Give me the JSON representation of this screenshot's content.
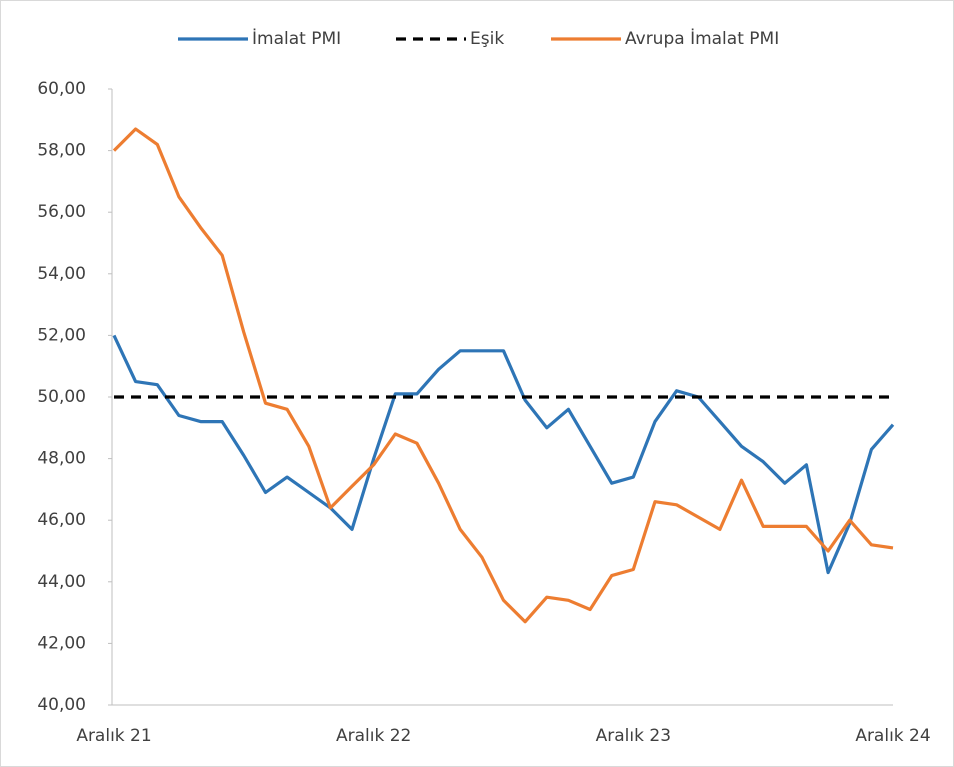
{
  "chart_data": {
    "type": "line",
    "categories": [
      "Aralık 21",
      null,
      null,
      null,
      null,
      null,
      null,
      null,
      null,
      null,
      null,
      null,
      "Aralık 22",
      null,
      null,
      null,
      null,
      null,
      null,
      null,
      null,
      null,
      null,
      null,
      "Aralık 23",
      null,
      null,
      null,
      null,
      null,
      null,
      null,
      null,
      null,
      null,
      null,
      "Aralık 24"
    ],
    "series": [
      {
        "name": "İmalat PMI",
        "color": "#2e75b6",
        "dash": false,
        "values": [
          52.0,
          50.5,
          50.4,
          49.4,
          49.2,
          49.2,
          48.1,
          46.9,
          47.4,
          46.9,
          46.4,
          45.7,
          48.0,
          50.1,
          50.1,
          50.9,
          51.5,
          51.5,
          51.5,
          49.9,
          49.0,
          49.6,
          48.4,
          47.2,
          47.4,
          49.2,
          50.2,
          50.0,
          49.2,
          48.4,
          47.9,
          47.2,
          47.8,
          44.3,
          45.9,
          48.3,
          49.1
        ]
      },
      {
        "name": "Eşik",
        "color": "#000000",
        "dash": true,
        "values": [
          50,
          50,
          50,
          50,
          50,
          50,
          50,
          50,
          50,
          50,
          50,
          50,
          50,
          50,
          50,
          50,
          50,
          50,
          50,
          50,
          50,
          50,
          50,
          50,
          50,
          50,
          50,
          50,
          50,
          50,
          50,
          50,
          50,
          50,
          50,
          50,
          50
        ]
      },
      {
        "name": "Avrupa İmalat PMI",
        "color": "#ed7d31",
        "dash": false,
        "values": [
          58.0,
          58.7,
          58.2,
          56.5,
          55.5,
          54.6,
          52.1,
          49.8,
          49.6,
          48.4,
          46.4,
          47.1,
          47.8,
          48.8,
          48.5,
          47.2,
          45.7,
          44.8,
          43.4,
          42.7,
          43.5,
          43.4,
          43.1,
          44.2,
          44.4,
          46.6,
          46.5,
          46.1,
          45.7,
          47.3,
          45.8,
          45.8,
          45.8,
          45.0,
          46.0,
          45.2,
          45.1
        ]
      }
    ],
    "ylim": [
      40,
      60
    ],
    "yticks": [
      {
        "value": 40,
        "label": "40,00"
      },
      {
        "value": 42,
        "label": "42,00"
      },
      {
        "value": 44,
        "label": "44,00"
      },
      {
        "value": 46,
        "label": "46,00"
      },
      {
        "value": 48,
        "label": "48,00"
      },
      {
        "value": 50,
        "label": "50,00"
      },
      {
        "value": 52,
        "label": "52,00"
      },
      {
        "value": 54,
        "label": "54,00"
      },
      {
        "value": 56,
        "label": "56,00"
      },
      {
        "value": 58,
        "label": "58,00"
      },
      {
        "value": 60,
        "label": "60,00"
      }
    ],
    "grid": false,
    "legend": "top"
  }
}
